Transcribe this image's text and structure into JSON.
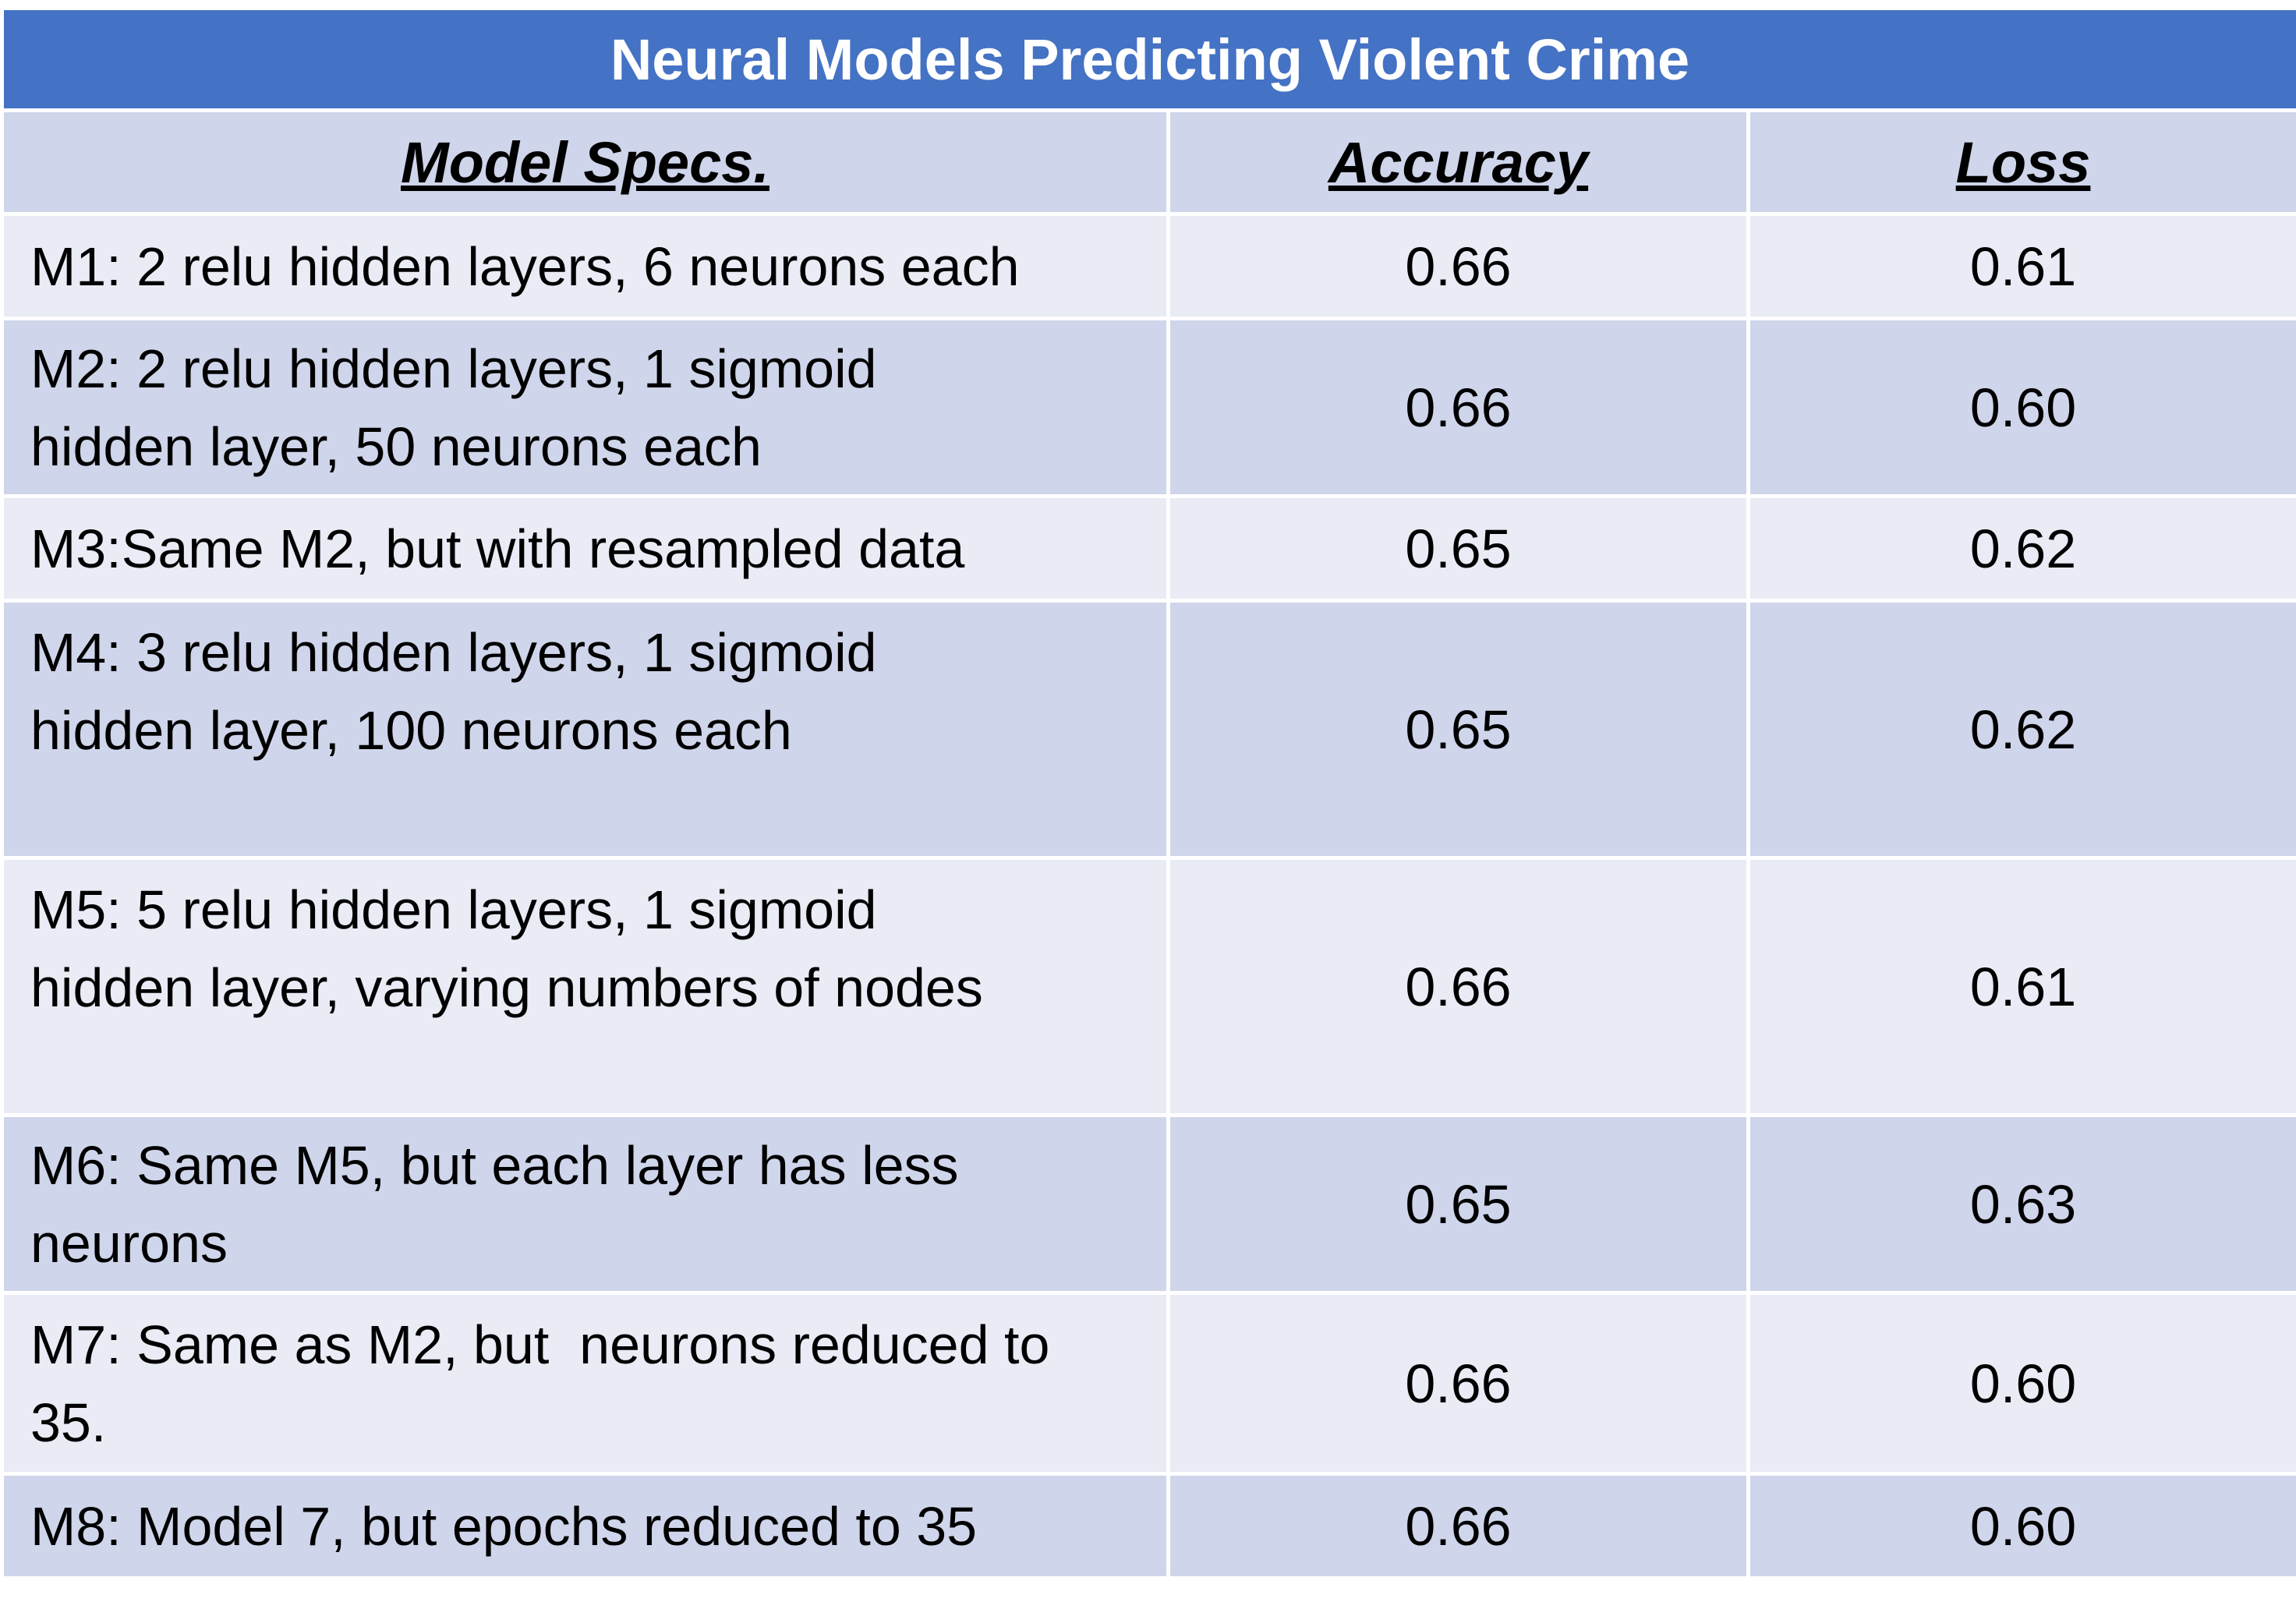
{
  "chart_data": {
    "type": "table",
    "title": "Neural Models Predicting Violent Crime",
    "columns": [
      "Model Specs.",
      "Accuracy",
      "Loss"
    ],
    "rows": [
      {
        "spec": "M1: 2 relu hidden layers, 6 neurons each",
        "accuracy": "0.66",
        "loss": "0.61"
      },
      {
        "spec_lines": [
          "M2: 2 relu hidden layers, 1 sigmoid",
          "hidden layer, 50 neurons each"
        ],
        "accuracy": "0.66",
        "loss": "0.60"
      },
      {
        "spec": "M3:Same M2, but with resampled data",
        "accuracy": "0.65",
        "loss": "0.62"
      },
      {
        "spec_lines": [
          "M4: 3 relu hidden layers, 1 sigmoid",
          "hidden layer, 100 neurons each"
        ],
        "accuracy": "0.65",
        "loss": "0.62"
      },
      {
        "spec_lines": [
          "M5: 5 relu hidden layers, 1 sigmoid",
          "hidden layer, varying numbers of nodes"
        ],
        "accuracy": "0.66",
        "loss": "0.61"
      },
      {
        "spec_lines": [
          "M6: Same M5, but each layer has less",
          "neurons"
        ],
        "accuracy": "0.65",
        "loss": "0.63"
      },
      {
        "spec_lines": [
          "M7: Same as M2, but  neurons reduced to",
          "35."
        ],
        "accuracy": "0.66",
        "loss": "0.60"
      },
      {
        "spec": "M8: Model 7, but epochs reduced to 35",
        "accuracy": "0.66",
        "loss": "0.60"
      }
    ]
  },
  "colors": {
    "title_bg": "#4472c4",
    "band_dark": "#cfd5ea",
    "band_light": "#e9ebf5"
  }
}
